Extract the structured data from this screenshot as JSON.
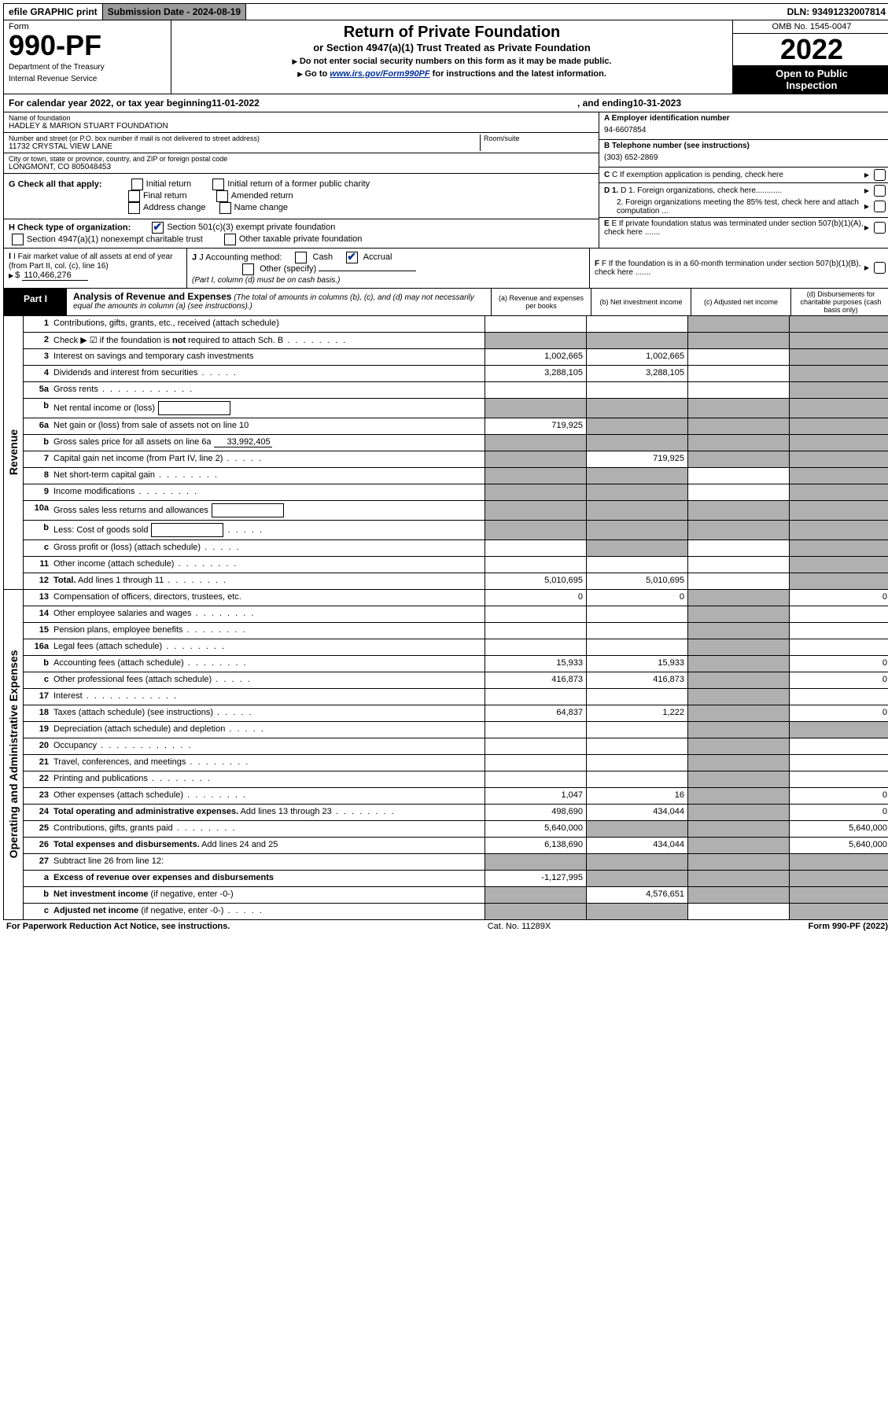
{
  "top": {
    "efile_label": "efile GRAPHIC print",
    "submission_label": "Submission Date - 2024-08-19",
    "dln": "DLN: 93491232007814"
  },
  "header": {
    "form_word": "Form",
    "form_number": "990-PF",
    "dept1": "Department of the Treasury",
    "dept2": "Internal Revenue Service",
    "title": "Return of Private Foundation",
    "subtitle": "or Section 4947(a)(1) Trust Treated as Private Foundation",
    "instr1": "Do not enter social security numbers on this form as it may be made public.",
    "instr2_pre": "Go to ",
    "instr2_link": "www.irs.gov/Form990PF",
    "instr2_post": " for instructions and the latest information.",
    "omb": "OMB No. 1545-0047",
    "year": "2022",
    "inspection1": "Open to Public",
    "inspection2": "Inspection"
  },
  "calendar": {
    "pre": "For calendar year 2022, or tax year beginning ",
    "begin": "11-01-2022",
    "mid": ", and ending ",
    "end": "10-31-2023"
  },
  "entity": {
    "name_label": "Name of foundation",
    "name": "HADLEY & MARION STUART FOUNDATION",
    "addr_label": "Number and street (or P.O. box number if mail is not delivered to street address)",
    "addr": "11732 CRYSTAL VIEW LANE",
    "room_label": "Room/suite",
    "city_label": "City or town, state or province, country, and ZIP or foreign postal code",
    "city": "LONGMONT, CO  805048453",
    "ein_label": "A Employer identification number",
    "ein": "94-6607854",
    "phone_label": "B Telephone number (see instructions)",
    "phone": "(303) 652-2869",
    "c_label": "C If exemption application is pending, check here"
  },
  "checks": {
    "g_label": "G Check all that apply:",
    "g_opts": [
      "Initial return",
      "Initial return of a former public charity",
      "Final return",
      "Amended return",
      "Address change",
      "Name change"
    ],
    "h_label": "H Check type of organization:",
    "h_opt1": "Section 501(c)(3) exempt private foundation",
    "h_opt2": "Section 4947(a)(1) nonexempt charitable trust",
    "h_opt3": "Other taxable private foundation",
    "i_label": "I Fair market value of all assets at end of year (from Part II, col. (c), line 16)",
    "i_value": "110,466,276",
    "j_label": "J Accounting method:",
    "j_cash": "Cash",
    "j_accrual": "Accrual",
    "j_other": "Other (specify)",
    "j_note": "(Part I, column (d) must be on cash basis.)",
    "d1": "D 1. Foreign organizations, check here............",
    "d2": "2. Foreign organizations meeting the 85% test, check here and attach computation ...",
    "e": "E If private foundation status was terminated under section 507(b)(1)(A), check here .......",
    "f": "F If the foundation is in a 60-month termination under section 507(b)(1)(B), check here ......."
  },
  "part1": {
    "label": "Part I",
    "title": "Analysis of Revenue and Expenses",
    "title_note": " (The total of amounts in columns (b), (c), and (d) may not necessarily equal the amounts in column (a) (see instructions).)",
    "col_a": "(a)   Revenue and expenses per books",
    "col_b": "(b)   Net investment income",
    "col_c": "(c)   Adjusted net income",
    "col_d": "(d)   Disbursements for charitable purposes (cash basis only)"
  },
  "sections": {
    "revenue": "Revenue",
    "expenses": "Operating and Administrative Expenses"
  },
  "rows": [
    {
      "n": "1",
      "desc": "Contributions, gifts, grants, etc., received (attach schedule)",
      "a": "",
      "b": "",
      "c": "s",
      "d": "s"
    },
    {
      "n": "2",
      "desc": "Check ▶ ☑ if the foundation is <b>not</b> required to attach Sch. B",
      "dots": "med",
      "a": "s",
      "b": "s",
      "c": "s",
      "d": "s"
    },
    {
      "n": "3",
      "desc": "Interest on savings and temporary cash investments",
      "a": "1,002,665",
      "b": "1,002,665",
      "c": "",
      "d": "s"
    },
    {
      "n": "4",
      "desc": "Dividends and interest from securities",
      "dots": "short",
      "a": "3,288,105",
      "b": "3,288,105",
      "c": "",
      "d": "s"
    },
    {
      "n": "5a",
      "desc": "Gross rents",
      "dots": "long",
      "a": "",
      "b": "",
      "c": "",
      "d": "s"
    },
    {
      "n": "b",
      "desc": "Net rental income or (loss)",
      "inline": true,
      "a": "s",
      "b": "s",
      "c": "s",
      "d": "s"
    },
    {
      "n": "6a",
      "desc": "Net gain or (loss) from sale of assets not on line 10",
      "a": "719,925",
      "b": "s",
      "c": "s",
      "d": "s"
    },
    {
      "n": "b",
      "desc": "Gross sales price for all assets on line 6a",
      "ival": "33,992,405",
      "a": "s",
      "b": "s",
      "c": "s",
      "d": "s"
    },
    {
      "n": "7",
      "desc": "Capital gain net income (from Part IV, line 2)",
      "dots": "short",
      "a": "s",
      "b": "719,925",
      "c": "s",
      "d": "s"
    },
    {
      "n": "8",
      "desc": "Net short-term capital gain",
      "dots": "med",
      "a": "s",
      "b": "s",
      "c": "",
      "d": "s"
    },
    {
      "n": "9",
      "desc": "Income modifications",
      "dots": "med",
      "a": "s",
      "b": "s",
      "c": "",
      "d": "s"
    },
    {
      "n": "10a",
      "desc": "Gross sales less returns and allowances",
      "inline": true,
      "a": "s",
      "b": "s",
      "c": "s",
      "d": "s"
    },
    {
      "n": "b",
      "desc": "Less: Cost of goods sold",
      "dots": "short",
      "inline": true,
      "a": "s",
      "b": "s",
      "c": "s",
      "d": "s"
    },
    {
      "n": "c",
      "desc": "Gross profit or (loss) (attach schedule)",
      "dots": "short",
      "a": "",
      "b": "s",
      "c": "",
      "d": "s"
    },
    {
      "n": "11",
      "desc": "Other income (attach schedule)",
      "dots": "med",
      "a": "",
      "b": "",
      "c": "",
      "d": "s"
    },
    {
      "n": "12",
      "desc": "<b>Total.</b> Add lines 1 through 11",
      "dots": "med",
      "a": "5,010,695",
      "b": "5,010,695",
      "c": "",
      "d": "s"
    }
  ],
  "exp_rows": [
    {
      "n": "13",
      "desc": "Compensation of officers, directors, trustees, etc.",
      "a": "0",
      "b": "0",
      "c": "s",
      "d": "0"
    },
    {
      "n": "14",
      "desc": "Other employee salaries and wages",
      "dots": "med",
      "a": "",
      "b": "",
      "c": "s",
      "d": ""
    },
    {
      "n": "15",
      "desc": "Pension plans, employee benefits",
      "dots": "med",
      "a": "",
      "b": "",
      "c": "s",
      "d": ""
    },
    {
      "n": "16a",
      "desc": "Legal fees (attach schedule)",
      "dots": "med",
      "a": "",
      "b": "",
      "c": "s",
      "d": ""
    },
    {
      "n": "b",
      "desc": "Accounting fees (attach schedule)",
      "dots": "med",
      "a": "15,933",
      "b": "15,933",
      "c": "s",
      "d": "0"
    },
    {
      "n": "c",
      "desc": "Other professional fees (attach schedule)",
      "dots": "short",
      "a": "416,873",
      "b": "416,873",
      "c": "s",
      "d": "0"
    },
    {
      "n": "17",
      "desc": "Interest",
      "dots": "long",
      "a": "",
      "b": "",
      "c": "s",
      "d": ""
    },
    {
      "n": "18",
      "desc": "Taxes (attach schedule) (see instructions)",
      "dots": "short",
      "a": "64,837",
      "b": "1,222",
      "c": "s",
      "d": "0"
    },
    {
      "n": "19",
      "desc": "Depreciation (attach schedule) and depletion",
      "dots": "short",
      "a": "",
      "b": "",
      "c": "s",
      "d": "s"
    },
    {
      "n": "20",
      "desc": "Occupancy",
      "dots": "long",
      "a": "",
      "b": "",
      "c": "s",
      "d": ""
    },
    {
      "n": "21",
      "desc": "Travel, conferences, and meetings",
      "dots": "med",
      "a": "",
      "b": "",
      "c": "s",
      "d": ""
    },
    {
      "n": "22",
      "desc": "Printing and publications",
      "dots": "med",
      "a": "",
      "b": "",
      "c": "s",
      "d": ""
    },
    {
      "n": "23",
      "desc": "Other expenses (attach schedule)",
      "dots": "med",
      "a": "1,047",
      "b": "16",
      "c": "s",
      "d": "0"
    },
    {
      "n": "24",
      "desc": "<b>Total operating and administrative expenses.</b> Add lines 13 through 23",
      "dots": "med",
      "a": "498,690",
      "b": "434,044",
      "c": "s",
      "d": "0"
    },
    {
      "n": "25",
      "desc": "Contributions, gifts, grants paid",
      "dots": "med",
      "a": "5,640,000",
      "b": "s",
      "c": "s",
      "d": "5,640,000"
    },
    {
      "n": "26",
      "desc": "<b>Total expenses and disbursements.</b> Add lines 24 and 25",
      "a": "6,138,690",
      "b": "434,044",
      "c": "s",
      "d": "5,640,000"
    },
    {
      "n": "27",
      "desc": "Subtract line 26 from line 12:",
      "a": "s",
      "b": "s",
      "c": "s",
      "d": "s"
    },
    {
      "n": "a",
      "desc": "<b>Excess of revenue over expenses and disbursements</b>",
      "a": "-1,127,995",
      "b": "s",
      "c": "s",
      "d": "s"
    },
    {
      "n": "b",
      "desc": "<b>Net investment income</b> (if negative, enter -0-)",
      "a": "s",
      "b": "4,576,651",
      "c": "s",
      "d": "s"
    },
    {
      "n": "c",
      "desc": "<b>Adjusted net income</b> (if negative, enter -0-)",
      "dots": "short",
      "a": "s",
      "b": "s",
      "c": "",
      "d": "s"
    }
  ],
  "footer": {
    "left": "For Paperwork Reduction Act Notice, see instructions.",
    "mid": "Cat. No. 11289X",
    "right": "Form 990-PF (2022)"
  }
}
